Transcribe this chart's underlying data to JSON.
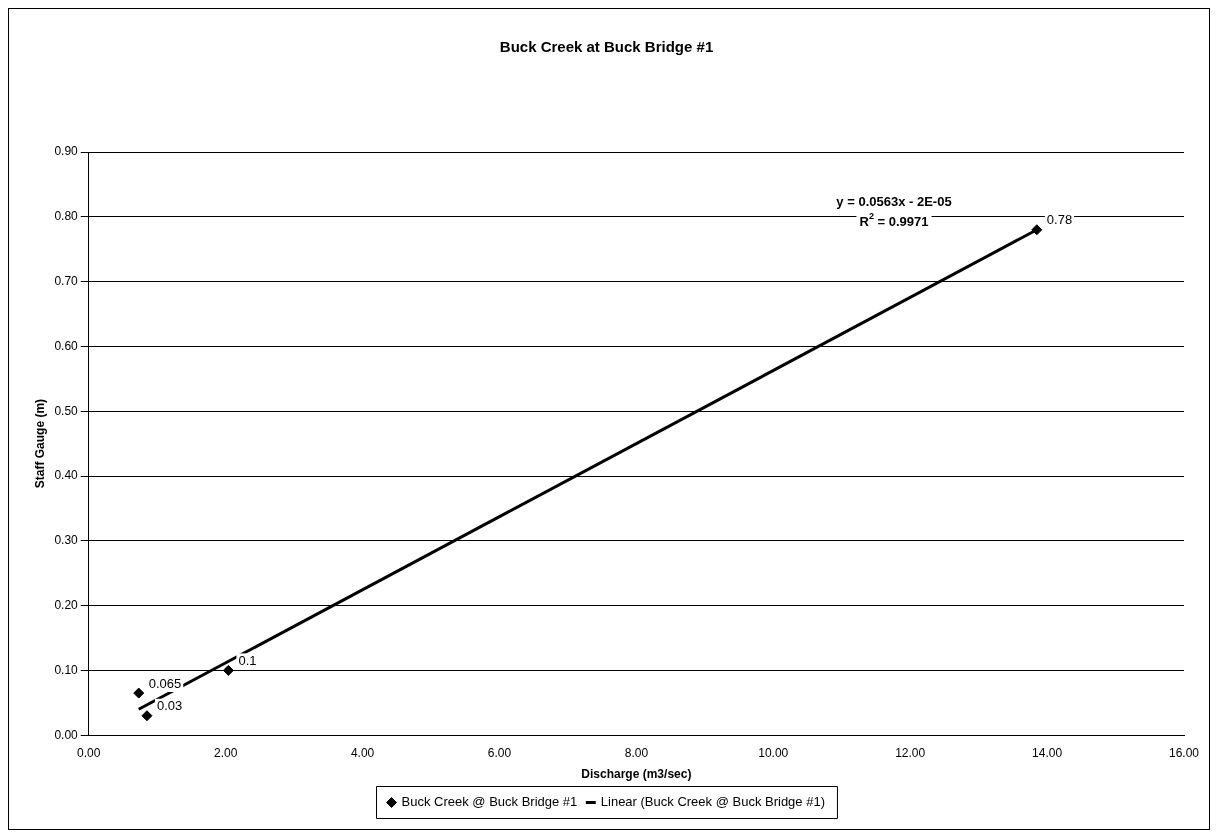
{
  "chart_data": {
    "type": "scatter",
    "title": "Buck Creek at Buck Bridge #1",
    "xlabel": "Discharge (m3/sec)",
    "ylabel": "Staff Gauge (m)",
    "series": [
      {
        "name": "Buck Creek @ Buck Bridge #1",
        "color": "#000000",
        "marker": "diamond",
        "x": [
          0.73,
          0.85,
          2.04,
          13.85
        ],
        "values": [
          0.065,
          0.03,
          0.1,
          0.78
        ],
        "value_labels": [
          "0.065",
          "0.03",
          "0.1",
          "0.78"
        ]
      },
      {
        "name": "Linear (Buck Creek @ Buck Bridge #1)",
        "type": "line",
        "color": "#000000",
        "marker": "none",
        "line_style": "solid",
        "x": [
          0.73,
          13.85
        ],
        "values": [
          0.04,
          0.78
        ]
      }
    ],
    "annotations": [
      "y = 0.0563x - 2E-05",
      "R$^{2}$ = 0.9971"
    ],
    "xlim": [
      0,
      16
    ],
    "xticks": [
      {
        "value": 0,
        "label": "0.00"
      },
      {
        "value": 2,
        "label": "2.00"
      },
      {
        "value": 4,
        "label": "4.00"
      },
      {
        "value": 6,
        "label": "6.00"
      },
      {
        "value": 8,
        "label": "8.00"
      },
      {
        "value": 10,
        "label": "10.00"
      },
      {
        "value": 12,
        "label": "12.00"
      },
      {
        "value": 14,
        "label": "14.00"
      },
      {
        "value": 16,
        "label": "16.00"
      }
    ],
    "ylim": [
      0,
      0.9
    ],
    "yticks": [
      {
        "value": 0,
        "label": "0.00"
      },
      {
        "value": 0.1,
        "label": "0.10"
      },
      {
        "value": 0.2,
        "label": "0.20"
      },
      {
        "value": 0.3,
        "label": "0.30"
      },
      {
        "value": 0.4,
        "label": "0.40"
      },
      {
        "value": 0.5,
        "label": "0.50"
      },
      {
        "value": 0.6,
        "label": "0.60"
      },
      {
        "value": 0.7,
        "label": "0.70"
      },
      {
        "value": 0.8,
        "label": "0.80"
      },
      {
        "value": 0.9,
        "label": "0.90"
      }
    ],
    "grid": "y",
    "legend": "bottom"
  }
}
